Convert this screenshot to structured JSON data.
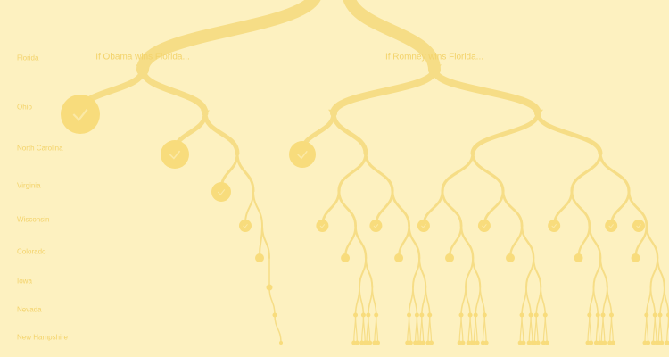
{
  "captions": {
    "obama": "If Obama wins Florida...",
    "romney": "If Romney wins Florida..."
  },
  "states": [
    "Florida",
    "Ohio",
    "North Carolina",
    "Virginia",
    "Wisconsin",
    "Colorado",
    "Iowa",
    "Nevada",
    "New Hampshire"
  ],
  "colors": {
    "background": "#fdf1c0",
    "branch": "#f6dd86",
    "node": "#f8dc7c",
    "label": "#f3d36b"
  }
}
